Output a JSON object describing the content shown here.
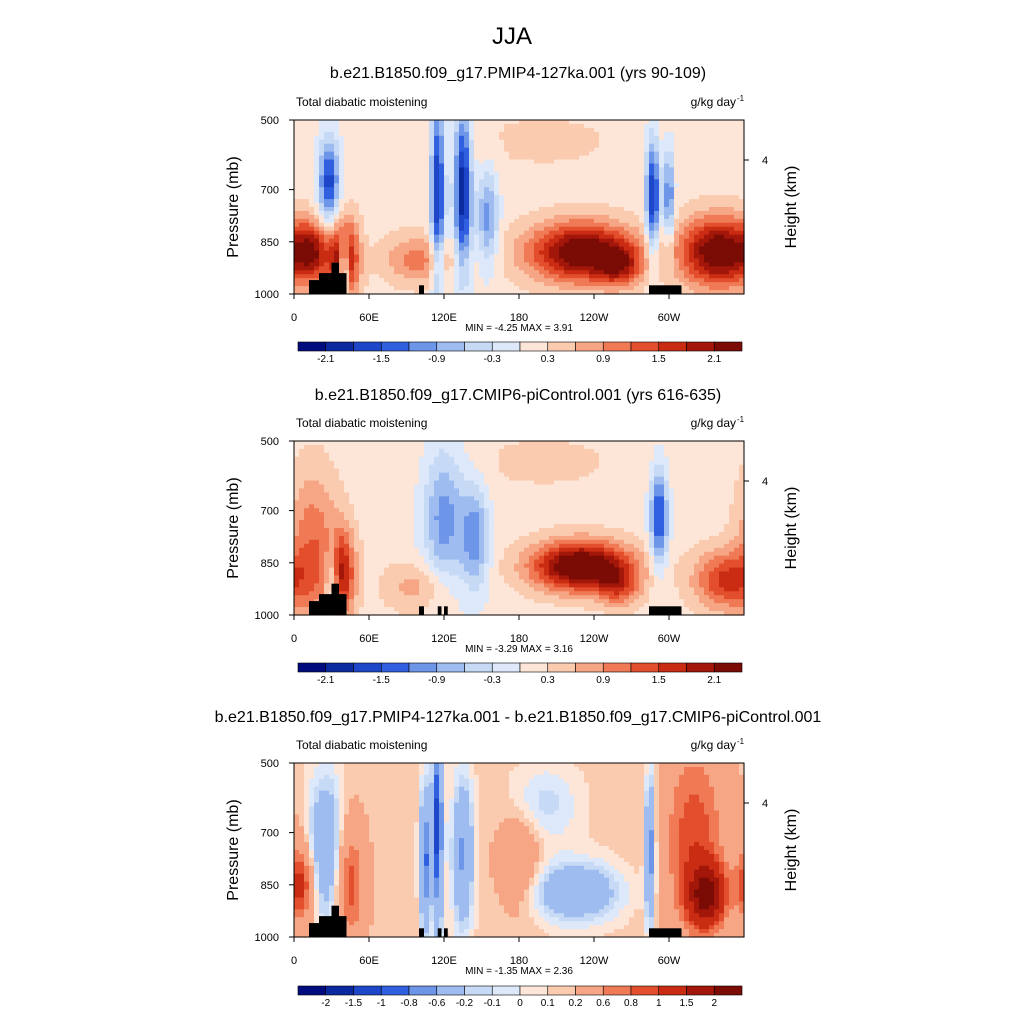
{
  "figure": {
    "title": "JJA"
  },
  "colors": {
    "scale": [
      "#000c7d",
      "#0b2a9f",
      "#1e46c8",
      "#3060e0",
      "#6d95e8",
      "#9ebcf0",
      "#c6daf5",
      "#dde9fa",
      "#fde6d8",
      "#fbcbb0",
      "#f6a684",
      "#ef7a55",
      "#e34e2c",
      "#c92c12",
      "#a3170a",
      "#7a0b05"
    ],
    "land": "#000000"
  },
  "chart_data": [
    {
      "type": "heatmap",
      "title": "b.e21.B1850.f09_g17.PMIP4-127ka.001 (yrs 90-109)",
      "left_label": "Total diabatic moistening",
      "units": "g/kg day",
      "units_exp": "-1",
      "xlabel": "",
      "ylabel": "Pressure (mb)",
      "ylabel_right": "Height (km)",
      "x_ticks": [
        "0",
        "60E",
        "120E",
        "180",
        "120W",
        "60W"
      ],
      "x_tick_values": [
        0,
        60,
        120,
        180,
        240,
        300
      ],
      "xlim": [
        0,
        360
      ],
      "y_ticks": [
        "500",
        "700",
        "850",
        "1000"
      ],
      "y_tick_values": [
        500,
        700,
        850,
        1000
      ],
      "ylim": [
        500,
        1000
      ],
      "y_right_ticks": [
        "4"
      ],
      "stats_text": "MIN =  -4.25  MAX =   3.91",
      "min": -4.25,
      "max": 3.91,
      "colorbar_labels": [
        "-2.1",
        "-1.5",
        "-0.9",
        "-0.3",
        "0.3",
        "0.9",
        "1.5",
        "2.1"
      ],
      "colorbar_levels": [
        -2.1,
        -1.8,
        -1.5,
        -1.2,
        -0.9,
        -0.6,
        -0.3,
        0,
        0.3,
        0.6,
        0.9,
        1.2,
        1.5,
        1.8,
        2.1
      ],
      "features": [
        {
          "lon": 40,
          "p": 900,
          "amp": 2.2,
          "sx": 8,
          "sy": 80
        },
        {
          "lon": 28,
          "p": 680,
          "amp": -1.8,
          "sx": 6,
          "sy": 90
        },
        {
          "lon": 40,
          "p": 920,
          "amp": -2.0,
          "sx": 3,
          "sy": 60
        },
        {
          "lon": 15,
          "p": 880,
          "amp": 1.5,
          "sx": 10,
          "sy": 60
        },
        {
          "lon": 115,
          "p": 700,
          "amp": -2.0,
          "sx": 4,
          "sy": 200
        },
        {
          "lon": 135,
          "p": 700,
          "amp": -2.2,
          "sx": 5,
          "sy": 170
        },
        {
          "lon": 155,
          "p": 780,
          "amp": -1.2,
          "sx": 6,
          "sy": 100
        },
        {
          "lon": 230,
          "p": 880,
          "amp": 2.4,
          "sx": 30,
          "sy": 60
        },
        {
          "lon": 260,
          "p": 920,
          "amp": 1.2,
          "sx": 12,
          "sy": 40
        },
        {
          "lon": 287,
          "p": 720,
          "amp": -2.0,
          "sx": 4,
          "sy": 120
        },
        {
          "lon": 300,
          "p": 720,
          "amp": -1.4,
          "sx": 3,
          "sy": 100
        },
        {
          "lon": 340,
          "p": 880,
          "amp": 2.4,
          "sx": 22,
          "sy": 70
        },
        {
          "lon": 200,
          "p": 560,
          "amp": 0.2,
          "sx": 60,
          "sy": 80
        },
        {
          "lon": 100,
          "p": 900,
          "amp": 0.9,
          "sx": 20,
          "sy": 50
        }
      ],
      "topography": [
        {
          "lon_start": 12,
          "lon_end": 20,
          "p_top": 960
        },
        {
          "lon_start": 20,
          "lon_end": 30,
          "p_top": 940
        },
        {
          "lon_start": 30,
          "lon_end": 36,
          "p_top": 910
        },
        {
          "lon_start": 36,
          "lon_end": 42,
          "p_top": 940
        },
        {
          "lon_start": 100,
          "lon_end": 104,
          "p_top": 975
        },
        {
          "lon_start": 284,
          "lon_end": 310,
          "p_top": 975
        }
      ]
    },
    {
      "type": "heatmap",
      "title": "b.e21.B1850.f09_g17.CMIP6-piControl.001 (yrs 616-635)",
      "left_label": "Total diabatic moistening",
      "units": "g/kg day",
      "units_exp": "-1",
      "xlabel": "",
      "ylabel": "Pressure (mb)",
      "ylabel_right": "Height (km)",
      "x_ticks": [
        "0",
        "60E",
        "120E",
        "180",
        "120W",
        "60W"
      ],
      "x_tick_values": [
        0,
        60,
        120,
        180,
        240,
        300
      ],
      "xlim": [
        0,
        360
      ],
      "y_ticks": [
        "500",
        "700",
        "850",
        "1000"
      ],
      "y_tick_values": [
        500,
        700,
        850,
        1000
      ],
      "ylim": [
        500,
        1000
      ],
      "y_right_ticks": [
        "4"
      ],
      "stats_text": "MIN =  -3.29  MAX =   3.16",
      "min": -3.29,
      "max": 3.16,
      "colorbar_labels": [
        "-2.1",
        "-1.5",
        "-0.9",
        "-0.3",
        "0.3",
        "0.9",
        "1.5",
        "2.1"
      ],
      "colorbar_levels": [
        -2.1,
        -1.8,
        -1.5,
        -1.2,
        -0.9,
        -0.6,
        -0.3,
        0,
        0.3,
        0.6,
        0.9,
        1.2,
        1.5,
        1.8,
        2.1
      ],
      "features": [
        {
          "lon": 38,
          "p": 880,
          "amp": 1.6,
          "sx": 8,
          "sy": 90
        },
        {
          "lon": 30,
          "p": 900,
          "amp": -1.2,
          "sx": 4,
          "sy": 80
        },
        {
          "lon": 15,
          "p": 800,
          "amp": 1.0,
          "sx": 14,
          "sy": 150
        },
        {
          "lon": 120,
          "p": 720,
          "amp": -1.2,
          "sx": 12,
          "sy": 150
        },
        {
          "lon": 145,
          "p": 780,
          "amp": -1.2,
          "sx": 8,
          "sy": 110
        },
        {
          "lon": 230,
          "p": 860,
          "amp": 2.6,
          "sx": 28,
          "sy": 50
        },
        {
          "lon": 260,
          "p": 920,
          "amp": 1.0,
          "sx": 12,
          "sy": 40
        },
        {
          "lon": 292,
          "p": 720,
          "amp": -1.8,
          "sx": 5,
          "sy": 100
        },
        {
          "lon": 345,
          "p": 900,
          "amp": 1.4,
          "sx": 18,
          "sy": 60
        },
        {
          "lon": 200,
          "p": 560,
          "amp": 0.2,
          "sx": 60,
          "sy": 80
        },
        {
          "lon": 100,
          "p": 920,
          "amp": 0.6,
          "sx": 20,
          "sy": 50
        }
      ],
      "topography": [
        {
          "lon_start": 12,
          "lon_end": 20,
          "p_top": 960
        },
        {
          "lon_start": 20,
          "lon_end": 30,
          "p_top": 940
        },
        {
          "lon_start": 30,
          "lon_end": 36,
          "p_top": 910
        },
        {
          "lon_start": 36,
          "lon_end": 42,
          "p_top": 940
        },
        {
          "lon_start": 100,
          "lon_end": 104,
          "p_top": 975
        },
        {
          "lon_start": 115,
          "lon_end": 118,
          "p_top": 975
        },
        {
          "lon_start": 120,
          "lon_end": 123,
          "p_top": 975
        },
        {
          "lon_start": 284,
          "lon_end": 310,
          "p_top": 975
        }
      ]
    },
    {
      "type": "heatmap",
      "title": "b.e21.B1850.f09_g17.PMIP4-127ka.001 - b.e21.B1850.f09_g17.CMIP6-piControl.001",
      "left_label": "Total diabatic moistening",
      "units": "g/kg day",
      "units_exp": "-1",
      "xlabel": "",
      "ylabel": "Pressure (mb)",
      "ylabel_right": "Height (km)",
      "x_ticks": [
        "0",
        "60E",
        "120E",
        "180",
        "120W",
        "60W"
      ],
      "x_tick_values": [
        0,
        60,
        120,
        180,
        240,
        300
      ],
      "xlim": [
        0,
        360
      ],
      "y_ticks": [
        "500",
        "700",
        "850",
        "1000"
      ],
      "y_tick_values": [
        500,
        700,
        850,
        1000
      ],
      "ylim": [
        500,
        1000
      ],
      "y_right_ticks": [
        "4"
      ],
      "stats_text": "MIN =  -1.35  MAX =   2.36",
      "min": -1.35,
      "max": 2.36,
      "colorbar_labels": [
        "-2",
        "-1.5",
        "-1",
        "-0.8",
        "-0.6",
        "-0.2",
        "-0.1",
        "0",
        "0.1",
        "0.2",
        "0.6",
        "0.8",
        "1",
        "1.5",
        "2"
      ],
      "colorbar_levels": [
        -2,
        -1.5,
        -1,
        -0.8,
        -0.6,
        -0.2,
        -0.1,
        0,
        0.1,
        0.2,
        0.6,
        0.8,
        1,
        1.5,
        2
      ],
      "features": [
        {
          "lon": 5,
          "p": 850,
          "amp": 1.0,
          "sx": 8,
          "sy": 80
        },
        {
          "lon": 25,
          "p": 750,
          "amp": -0.7,
          "sx": 10,
          "sy": 150
        },
        {
          "lon": 45,
          "p": 850,
          "amp": 0.8,
          "sx": 8,
          "sy": 120
        },
        {
          "lon": 105,
          "p": 780,
          "amp": -1.0,
          "sx": 3,
          "sy": 150
        },
        {
          "lon": 115,
          "p": 680,
          "amp": -1.3,
          "sx": 3,
          "sy": 200
        },
        {
          "lon": 135,
          "p": 760,
          "amp": -0.8,
          "sx": 6,
          "sy": 150
        },
        {
          "lon": 180,
          "p": 780,
          "amp": 0.4,
          "sx": 12,
          "sy": 100
        },
        {
          "lon": 225,
          "p": 870,
          "amp": -0.7,
          "sx": 25,
          "sy": 60
        },
        {
          "lon": 200,
          "p": 620,
          "amp": -0.3,
          "sx": 20,
          "sy": 80
        },
        {
          "lon": 285,
          "p": 750,
          "amp": -1.0,
          "sx": 3,
          "sy": 150
        },
        {
          "lon": 320,
          "p": 720,
          "amp": 0.8,
          "sx": 18,
          "sy": 200
        },
        {
          "lon": 330,
          "p": 880,
          "amp": 1.8,
          "sx": 10,
          "sy": 60
        }
      ],
      "topography": [
        {
          "lon_start": 12,
          "lon_end": 20,
          "p_top": 960
        },
        {
          "lon_start": 20,
          "lon_end": 30,
          "p_top": 940
        },
        {
          "lon_start": 30,
          "lon_end": 36,
          "p_top": 910
        },
        {
          "lon_start": 36,
          "lon_end": 42,
          "p_top": 940
        },
        {
          "lon_start": 100,
          "lon_end": 104,
          "p_top": 975
        },
        {
          "lon_start": 115,
          "lon_end": 118,
          "p_top": 975
        },
        {
          "lon_start": 120,
          "lon_end": 123,
          "p_top": 975
        },
        {
          "lon_start": 284,
          "lon_end": 310,
          "p_top": 975
        }
      ]
    }
  ]
}
